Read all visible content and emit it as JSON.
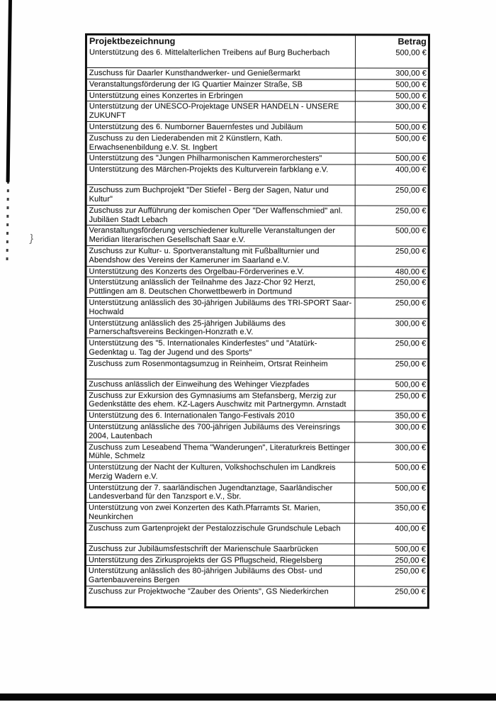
{
  "table": {
    "columns": [
      "Projektbezeichnung",
      "Betrag"
    ],
    "rows": [
      {
        "label": "Unterstützung des 6. Mittelalterlichen Treibens auf Burg Bucherbach",
        "amount": "500,00 €",
        "extra_space": true
      },
      {
        "label": "Zuschuss für Daarler Kunsthandwerker- und Genießermarkt",
        "amount": "300,00 €",
        "extra_space": false
      },
      {
        "label": "Veranstaltungsförderung der IG Quartier Mainzer Straße, SB",
        "amount": "500,00 €",
        "extra_space": false
      },
      {
        "label": "Unterstützung eines Konzertes in Erbringen",
        "amount": "500,00 €",
        "extra_space": false
      },
      {
        "label": "Unterstützung der UNESCO-Projektage UNSER HANDELN - UNSERE ZUKUNFT",
        "amount": "300,00 €",
        "extra_space": false
      },
      {
        "label": "Unterstützung des 6. Numborner Bauernfestes und Jubiläum",
        "amount": "500,00 €",
        "extra_space": false
      },
      {
        "label": "Zuschuss zu den Liederabenden mit 2 Künstlern, Kath. Erwachsenenbildung e.V. St. Ingbert",
        "amount": "500,00 €",
        "extra_space": false
      },
      {
        "label": "Unterstützung des \"Jungen Philharmonischen Kammerorchesters\"",
        "amount": "500,00 €",
        "extra_space": false
      },
      {
        "label": "Unterstützung des Märchen-Projekts des Kulturverein farbklang e.V.",
        "amount": "400,00 €",
        "extra_space": true
      },
      {
        "label": "Zuschuss zum Buchprojekt \"Der Stiefel - Berg der Sagen, Natur und Kultur\"",
        "amount": "250,00 €",
        "extra_space": false
      },
      {
        "label": "Zuschuss zur Aufführung der komischen Oper \"Der Waffenschmied\" anl. Jubiläen Stadt Lebach",
        "amount": "250,00 €",
        "extra_space": false
      },
      {
        "label": "Veranstaltungsförderung verschiedener kulturelle Veranstaltungen der Meridian literarischen Gesellschaft Saar e.V.",
        "amount": "500,00 €",
        "extra_space": false
      },
      {
        "label": "Zuschuss zur Kultur- u. Sportveranstaltung mit Fußballturnier und Abendshow des Vereins der Kameruner im Saarland e.V.",
        "amount": "250,00 €",
        "extra_space": false
      },
      {
        "label": "Unterstützung des Konzerts des Orgelbau-Förderverines e.V.",
        "amount": "480,00 €",
        "extra_space": false
      },
      {
        "label": "Unterstützung anlässlich der Teilnahme des Jazz-Chor 92 Herzt, Püttlingen am 8. Deutschen Chorwettbewerb in Dortmund",
        "amount": "250,00 €",
        "extra_space": false
      },
      {
        "label": "Unterstützung anlässlich des 30-jährigen Jubiläums des TRI-SPORT Saar-Hochwald",
        "amount": "250,00 €",
        "extra_space": false
      },
      {
        "label": "Unterstützung anlässlich des 25-jährigen Jubiläums des Parnerschaftsvereins Beckingen-Honzrath e.V.",
        "amount": "300,00 €",
        "extra_space": false
      },
      {
        "label": "Unterstützung des \"5. Internationales Kinderfestes\" und \"Atatürk-Gedenktag u. Tag der Jugend und des Sports\"",
        "amount": "250,00 €",
        "extra_space": false
      },
      {
        "label": "Zuschuss zum Rosenmontagsumzug in Reinheim, Ortsrat Reinheim",
        "amount": "250,00 €",
        "extra_space": true
      },
      {
        "label": "Zuschuss anlässlich der Einweihung des Wehinger Viezpfades",
        "amount": "500,00 €",
        "extra_space": false
      },
      {
        "label": "Zuschuss zur Exkursion des Gymnasiums am Stefansberg, Merzig zur Gedenkstätte des ehem. KZ-Lagers Auschwitz mit Partnergymn. Arnstadt",
        "amount": "250,00 €",
        "extra_space": false
      },
      {
        "label": "Unterstützung des 6. Internationalen Tango-Festivals 2010",
        "amount": "350,00 €",
        "extra_space": false
      },
      {
        "label": "Unterstützung anlässliche des 700-jährigen Jubiläums des Vereinsrings 2004, Lautenbach",
        "amount": "300,00 €",
        "extra_space": false
      },
      {
        "label": "Zuschuss zum Leseabend Thema \"Wanderungen\", Literaturkreis Bettinger Mühle, Schmelz",
        "amount": "300,00 €",
        "extra_space": false
      },
      {
        "label": "Unterstützung der Nacht der Kulturen, Volkshochschulen im Landkreis Merzig Wadern e.V.",
        "amount": "500,00 €",
        "extra_space": false
      },
      {
        "label": "Unterstützung der 7. saarländischen Jugendtanztage, Saarländischer Landesverband für den Tanzsport e.V., Sbr.",
        "amount": "500,00 €",
        "extra_space": false
      },
      {
        "label": "Unterstützung von zwei Konzerten des Kath.Pfarramts St. Marien, Neunkirchen",
        "amount": "350,00 €",
        "extra_space": false
      },
      {
        "label": "Zuschuss zum Gartenprojekt der Pestalozzischule Grundschule Lebach",
        "amount": "400,00 €",
        "extra_space": true
      },
      {
        "label": "Zuschuss zur Jubiläumsfestschrift der Marienschule Saarbrücken",
        "amount": "500,00 €",
        "extra_space": false
      },
      {
        "label": "Unterstützung des Zirkusprojekts der GS Pflugscheid, Riegelsberg",
        "amount": "250,00 €",
        "extra_space": false
      },
      {
        "label": "Unterstützung anlässlich des 80-jährigen Jubiläums des Obst- und Gartenbauvereins Bergen",
        "amount": "250,00 €",
        "extra_space": false
      },
      {
        "label": "Zuschuss zur Projektwoche \"Zauber des Orients\", GS Niederkirchen",
        "amount": "250,00 €",
        "extra_space": true
      }
    ]
  },
  "artifacts": {
    "margin_mark": "}",
    "colors": {
      "ink": "#1a1a1a",
      "table_border": "#101010",
      "scan_black": "#060606"
    }
  }
}
